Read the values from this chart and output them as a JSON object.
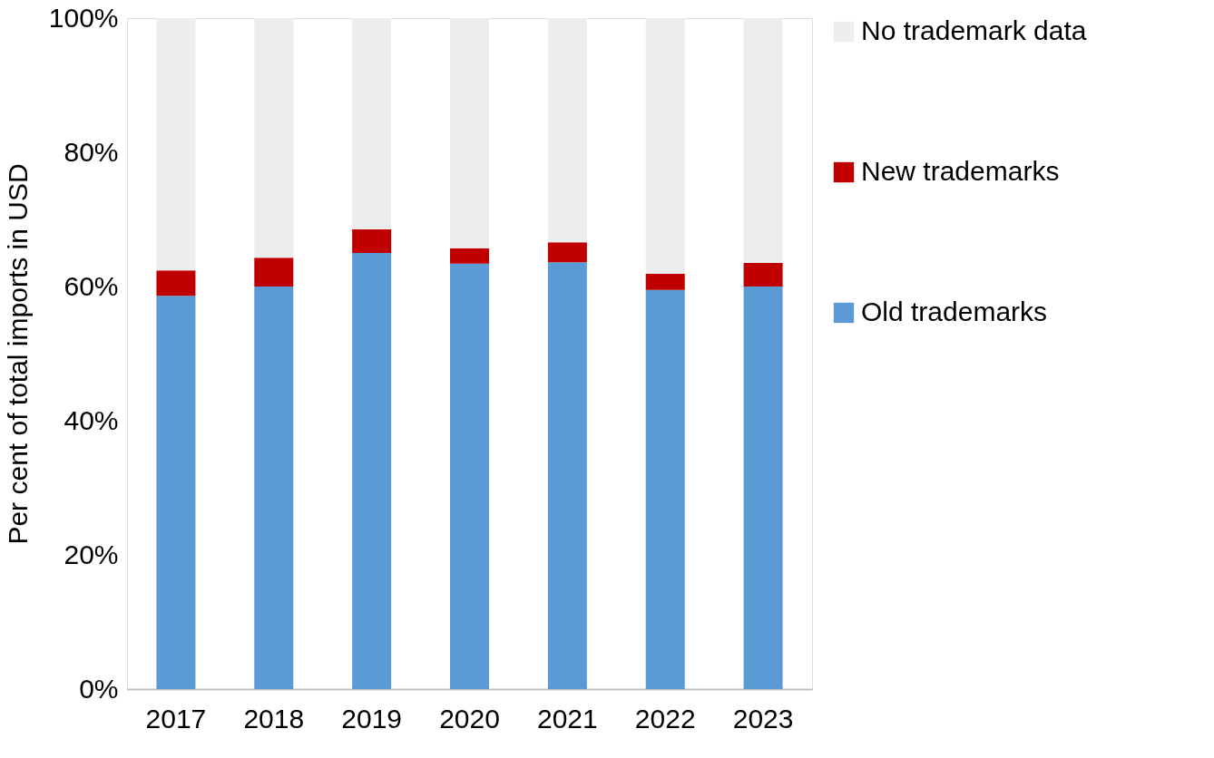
{
  "chart_data": {
    "type": "bar",
    "stacked": true,
    "ylabel": "Per cent of total imports in USD",
    "categories": [
      "2017",
      "2018",
      "2019",
      "2020",
      "2021",
      "2022",
      "2023"
    ],
    "series": [
      {
        "name": "Old trademarks",
        "color": "#5b9bd5",
        "values": [
          58.6,
          60.0,
          65.0,
          63.4,
          63.6,
          59.5,
          60.0
        ]
      },
      {
        "name": "New trademarks",
        "color": "#c00000",
        "values": [
          3.8,
          4.3,
          3.5,
          2.3,
          3.0,
          2.4,
          3.5
        ]
      },
      {
        "name": "No trademark data",
        "color": "#ededed",
        "values": [
          37.6,
          35.7,
          31.5,
          34.3,
          33.4,
          38.1,
          36.5
        ]
      }
    ],
    "ylim": [
      0,
      100
    ],
    "yticks": [
      {
        "value": 0,
        "label": "0%"
      },
      {
        "value": 20,
        "label": "20%"
      },
      {
        "value": 40,
        "label": "40%"
      },
      {
        "value": 60,
        "label": "60%"
      },
      {
        "value": 80,
        "label": "80%"
      },
      {
        "value": 100,
        "label": "100%"
      }
    ],
    "grid": false,
    "legend": "right"
  }
}
